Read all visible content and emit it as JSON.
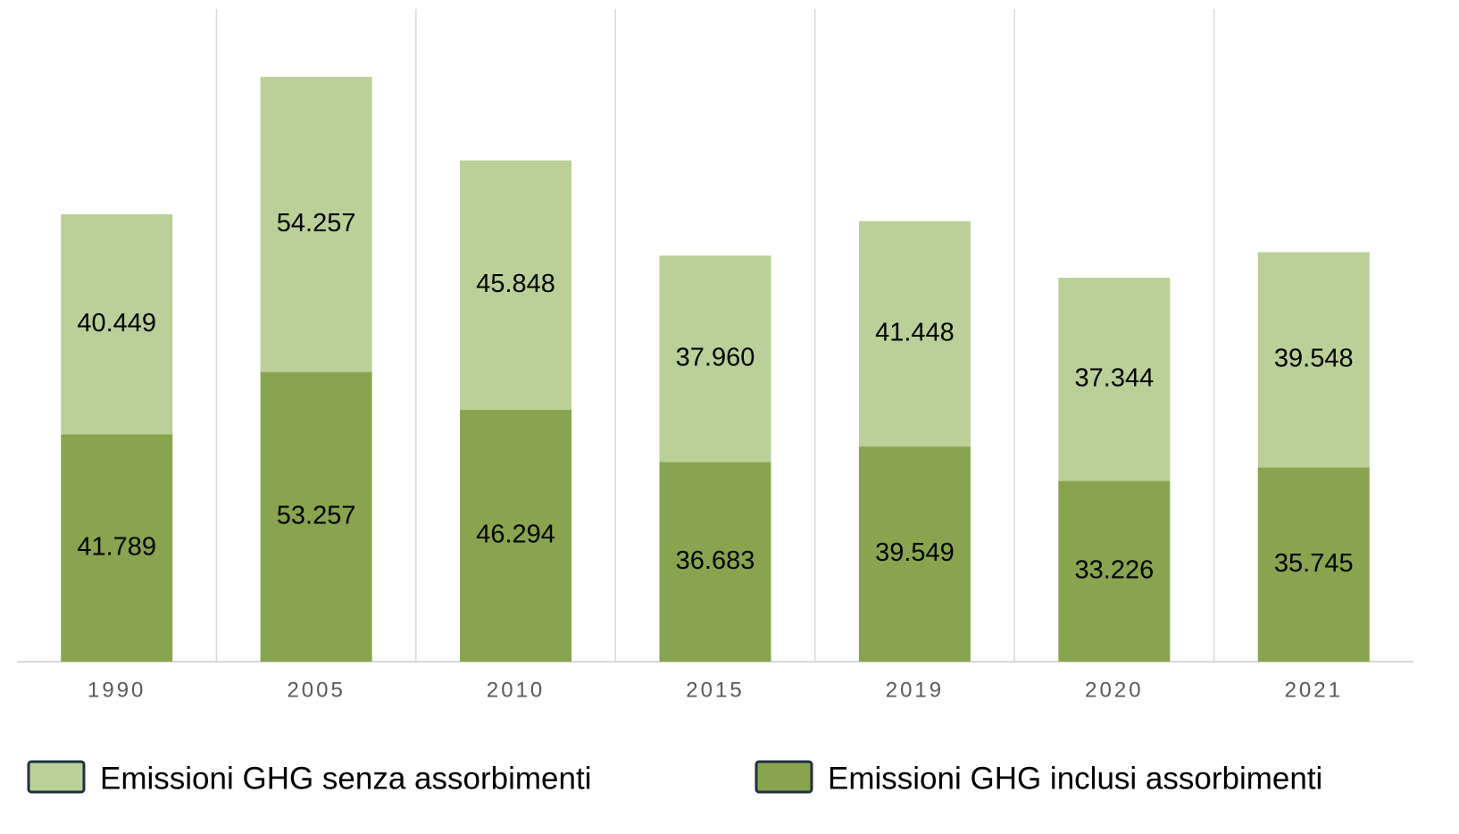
{
  "chart_data": {
    "type": "stacked_bar",
    "categories": [
      "1990",
      "2005",
      "2010",
      "2015",
      "2019",
      "2020",
      "2021"
    ],
    "series": [
      {
        "name": "Emissioni GHG senza assorbimenti",
        "color": "#bad098",
        "values": [
          40449,
          54257,
          45848,
          37960,
          41448,
          37344,
          39548
        ],
        "value_labels": [
          "40.449",
          "54.257",
          "45.848",
          "37.960",
          "41.448",
          "37.344",
          "39.548"
        ]
      },
      {
        "name": "Emissioni GHG inclusi assorbimenti",
        "color": "#89a44e",
        "values": [
          41789,
          53257,
          46294,
          36683,
          39549,
          33226,
          35745
        ],
        "value_labels": [
          "41.789",
          "53.257",
          "46.294",
          "36.683",
          "39.549",
          "33.226",
          "35.745"
        ]
      }
    ],
    "ylim": [
      0,
      120000
    ]
  }
}
